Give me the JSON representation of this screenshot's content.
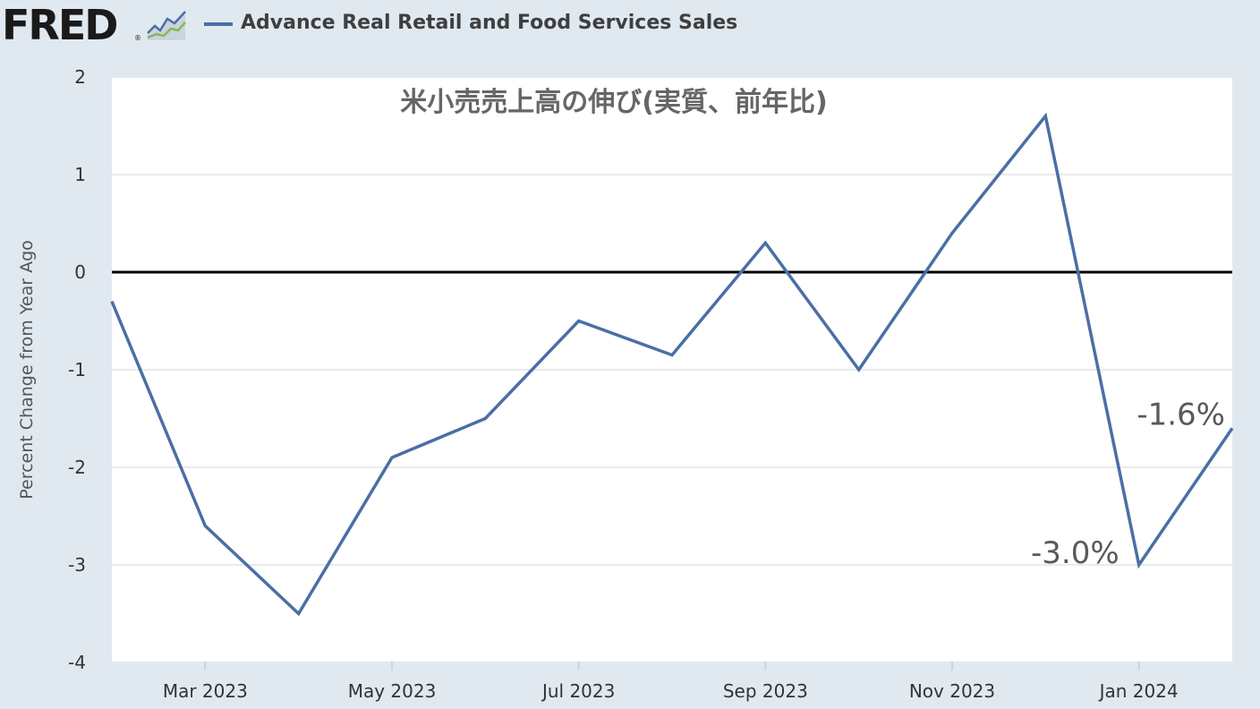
{
  "header": {
    "logo_text": "FRED",
    "logo_reg": "®",
    "legend_label": "Advance Real Retail and Food Services Sales"
  },
  "colors": {
    "series": "#4a6fa5",
    "background": "#e1e9f0",
    "plot_background": "#ffffff",
    "zero_line": "#000000"
  },
  "chart_data": {
    "type": "line",
    "title": "米小売売上高の伸び(実質、前年比)",
    "xlabel": "",
    "ylabel": "Percent Change from Year Ago",
    "ylim": [
      -4,
      2
    ],
    "yticks": [
      2,
      1,
      0,
      -1,
      -2,
      -3,
      -4
    ],
    "xlim": [
      "2023-02",
      "2024-02"
    ],
    "xticks": [
      {
        "date": "2023-03",
        "label": "Mar 2023"
      },
      {
        "date": "2023-05",
        "label": "May 2023"
      },
      {
        "date": "2023-07",
        "label": "Jul 2023"
      },
      {
        "date": "2023-09",
        "label": "Sep 2023"
      },
      {
        "date": "2023-11",
        "label": "Nov 2023"
      },
      {
        "date": "2024-01",
        "label": "Jan 2024"
      }
    ],
    "grid": true,
    "series": [
      {
        "name": "Advance Real Retail and Food Services Sales",
        "x": [
          "2023-02",
          "2023-03",
          "2023-04",
          "2023-05",
          "2023-06",
          "2023-07",
          "2023-08",
          "2023-09",
          "2023-10",
          "2023-11",
          "2023-12",
          "2024-01",
          "2024-02"
        ],
        "values": [
          -0.3,
          -2.6,
          -3.5,
          -1.9,
          -1.5,
          -0.5,
          -0.85,
          0.3,
          -1.0,
          0.4,
          1.6,
          -3.0,
          -1.6
        ]
      }
    ],
    "annotations": [
      {
        "text": "-3.0%",
        "x": "2024-01",
        "y": -3.0
      },
      {
        "text": "-1.6%",
        "x": "2024-02",
        "y": -1.6
      }
    ]
  }
}
